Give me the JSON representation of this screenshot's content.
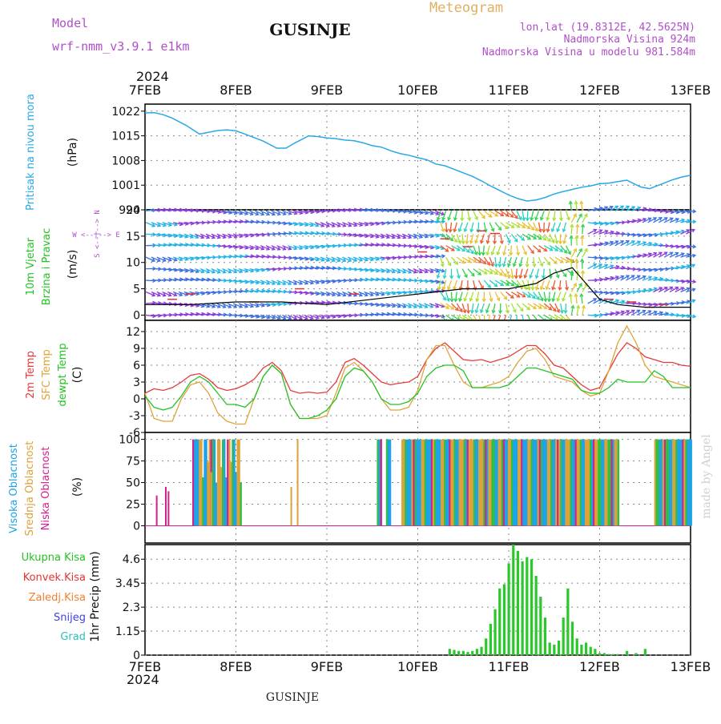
{
  "header": {
    "model_label": "Model",
    "model_name": "wrf-nmm_v3.9.1  e1km",
    "station": "GUSINJE",
    "meteogram_label": "Meteogram",
    "lonlat": "lon,lat (19.8312E, 42.5625N)",
    "elevation": "Nadmorska Visina 924m",
    "model_elevation": "Nadmorska Visina u modelu 981.584m",
    "footer_station": "GUSINJE",
    "credit": "made by Angel"
  },
  "time_axis": {
    "year": "2024",
    "ticks": [
      "7FEB",
      "8FEB",
      "9FEB",
      "10FEB",
      "11FEB",
      "12FEB",
      "13FEB"
    ]
  },
  "colors": {
    "pressure": "#29a8e6",
    "t2m": "#e6393a",
    "sfc": "#e0a338",
    "dew": "#22c322",
    "high_cloud": "#1ea3e6",
    "mid_cloud": "#dca23c",
    "low_cloud": "#d4208c",
    "precip_total": "#2ac82a",
    "precip_conv": "#e63232",
    "precip_frz": "#f08030",
    "precip_snow": "#4040e0",
    "precip_hail": "#30c0c0",
    "wind_speed_line": "#000000",
    "wind_gust_marks": "#e63232"
  },
  "chart_data": [
    {
      "type": "line",
      "panel": "pressure",
      "ylabel_main": "Pritisak na nivou mora",
      "ylabel_unit": "(hPa)",
      "ylim": [
        994,
        1024
      ],
      "yticks": [
        "994",
        "1001",
        "1008",
        "1015",
        "1022"
      ],
      "x_days": [
        0,
        0.1,
        0.2,
        0.3,
        0.45,
        0.6,
        0.7,
        0.8,
        0.9,
        1.0,
        1.1,
        1.2,
        1.3,
        1.45,
        1.55,
        1.65,
        1.8,
        1.9,
        2.0,
        2.1,
        2.2,
        2.3,
        2.4,
        2.5,
        2.6,
        2.7,
        2.8,
        2.9,
        3.0,
        3.1,
        3.2,
        3.3,
        3.4,
        3.5,
        3.6,
        3.7,
        3.8,
        3.9,
        4.0,
        4.1,
        4.2,
        4.3,
        4.4,
        4.5,
        4.6,
        4.7,
        4.8,
        4.9,
        5.0,
        5.1,
        5.2,
        5.3,
        5.45,
        5.55,
        5.65,
        5.8,
        5.9,
        6.0
      ],
      "values": [
        1021.5,
        1021.6,
        1021,
        1020,
        1018,
        1015.5,
        1016,
        1016.5,
        1016.7,
        1016.4,
        1015.5,
        1014.5,
        1013.5,
        1011.5,
        1011.5,
        1013,
        1015,
        1014.8,
        1014.4,
        1014.2,
        1013.8,
        1013.6,
        1013,
        1012.2,
        1011.8,
        1010.8,
        1010,
        1009.5,
        1008.8,
        1008.2,
        1007,
        1006.5,
        1005.5,
        1004.5,
        1003.5,
        1002.2,
        1000.8,
        999.5,
        998.2,
        997.2,
        996.5,
        996.8,
        997.5,
        998.5,
        999.2,
        999.8,
        1000.4,
        1000.8,
        1001.4,
        1001.6,
        1002,
        1002.4,
        1000.5,
        1000,
        1001,
        1002.5,
        1003.3,
        1003.8
      ]
    },
    {
      "type": "line",
      "panel": "wind",
      "ylabel_main_1": "10m Vjetar",
      "ylabel_main_2": "Brzina i Pravac",
      "ylabel_unit": "(m/s)",
      "dir_legend": [
        "W <--|--> E",
        "S <--|--> N"
      ],
      "ylim": [
        -1,
        20
      ],
      "yticks": [
        "0",
        "5",
        "10",
        "15",
        "20"
      ],
      "x_days": [
        0,
        0.5,
        1,
        1.5,
        2,
        2.5,
        3,
        3.5,
        3.8,
        4.0,
        4.3,
        4.5,
        4.7,
        4.85,
        5.0,
        5.2,
        5.5,
        6.0
      ],
      "speed": [
        2,
        2,
        2.5,
        2.5,
        2,
        3,
        4,
        5,
        5,
        5,
        6,
        8,
        9,
        6,
        3,
        2,
        1.5,
        1.5
      ]
    },
    {
      "type": "line",
      "panel": "temperature",
      "ylabel_main_1": "2m Temp",
      "ylabel_main_2": "SFC Temp",
      "ylabel_main_3": "dewpt Temp",
      "ylabel_unit": "(C)",
      "ylim": [
        -6,
        14
      ],
      "yticks": [
        "-6",
        "-3",
        "0",
        "3",
        "6",
        "9",
        "12"
      ],
      "x_days": [
        0,
        0.1,
        0.2,
        0.3,
        0.4,
        0.5,
        0.6,
        0.7,
        0.8,
        0.9,
        1.0,
        1.1,
        1.2,
        1.3,
        1.4,
        1.5,
        1.6,
        1.7,
        1.8,
        1.9,
        2.0,
        2.1,
        2.2,
        2.3,
        2.4,
        2.5,
        2.6,
        2.7,
        2.8,
        2.9,
        3.0,
        3.1,
        3.2,
        3.3,
        3.4,
        3.5,
        3.6,
        3.7,
        3.8,
        3.9,
        4.0,
        4.1,
        4.2,
        4.3,
        4.4,
        4.5,
        4.6,
        4.7,
        4.8,
        4.9,
        5.0,
        5.1,
        5.2,
        5.3,
        5.4,
        5.5,
        5.6,
        5.7,
        5.8,
        5.9,
        6.0
      ],
      "series": [
        {
          "name": "2m Temp",
          "values": [
            1,
            1.8,
            1.5,
            2,
            3,
            4.2,
            4.5,
            3.5,
            2,
            1.5,
            1.8,
            2.5,
            3.5,
            5.5,
            6.5,
            5,
            1.5,
            1,
            1.2,
            1,
            1.2,
            3,
            6.5,
            7.2,
            6,
            4.5,
            3,
            2.5,
            2.8,
            3,
            4,
            7,
            9,
            10,
            8.5,
            7,
            6.8,
            7,
            6.5,
            7,
            7.5,
            8.5,
            9.5,
            9.5,
            8,
            6,
            5.5,
            4,
            2.5,
            1.5,
            2,
            5,
            8,
            10,
            9,
            7.5,
            7,
            6.5,
            6.5,
            6,
            5.8
          ]
        },
        {
          "name": "SFC Temp",
          "values": [
            1,
            -3.5,
            -4,
            -4,
            0,
            2.5,
            3,
            1,
            -2.5,
            -4,
            -4.5,
            -4.5,
            0,
            4,
            6,
            4.5,
            -1,
            -3.5,
            -3.5,
            -3.5,
            -3,
            1,
            5.5,
            6.5,
            5,
            3,
            0,
            -2,
            -2,
            -1.5,
            1.5,
            7,
            9.5,
            9.5,
            6,
            3,
            2,
            2,
            2.5,
            3,
            4,
            6.5,
            8.5,
            9,
            7,
            4,
            3.5,
            3,
            1.5,
            0.5,
            1,
            5,
            10,
            13,
            10,
            6,
            4,
            3.5,
            3,
            2.5,
            2
          ]
        },
        {
          "name": "dewpt Temp",
          "values": [
            0.5,
            -1.5,
            -2,
            -1.5,
            0.5,
            3,
            4,
            3,
            1,
            -1,
            -1,
            -1.5,
            0,
            4,
            6,
            4.5,
            -1,
            -3.5,
            -3.5,
            -3,
            -2,
            0,
            4,
            5.5,
            5,
            3,
            0,
            -1,
            -1,
            -0.5,
            1,
            4,
            5.5,
            6,
            6,
            5,
            2,
            2,
            2,
            2,
            2.5,
            4,
            5.5,
            5.5,
            5,
            4.5,
            4,
            3.5,
            1.5,
            1,
            1,
            2,
            3.5,
            3,
            3,
            3,
            5,
            4,
            2,
            2,
            2
          ]
        }
      ]
    },
    {
      "type": "bar",
      "panel": "clouds",
      "ylabel_main_1": "Visoka Oblacnost",
      "ylabel_main_2": "Srednja Oblacnost",
      "ylabel_main_3": "Niska Oblacnost",
      "ylabel_unit": "(%)",
      "ylim": [
        0,
        100
      ],
      "yticks": [
        "0",
        "25",
        "50",
        "75",
        "100"
      ],
      "high_periods_days": [
        [
          0.52,
          0.72
        ],
        [
          0.72,
          1.05
        ],
        [
          2.55,
          2.6
        ],
        [
          2.65,
          2.7
        ],
        [
          2.82,
          5.2
        ],
        [
          5.6,
          6.0
        ]
      ],
      "low_bars_days": [
        0.12,
        0.22,
        0.25
      ],
      "low_bar_values": [
        35,
        45,
        40
      ]
    },
    {
      "type": "bar",
      "panel": "precip",
      "legend": [
        "Ukupna Kisa",
        "Konvek.Kisa",
        "Zaledj.Kisa",
        "Snijeg",
        "Grad"
      ],
      "ylabel_unit": "1hr Precip (mm)",
      "ylim": [
        0,
        5.3
      ],
      "yticks": [
        "0",
        "1.15",
        "2.3",
        "3.45",
        "4.6"
      ],
      "x_days": [
        3.35,
        3.4,
        3.45,
        3.5,
        3.55,
        3.6,
        3.65,
        3.7,
        3.75,
        3.8,
        3.85,
        3.9,
        3.95,
        4.0,
        4.05,
        4.1,
        4.15,
        4.2,
        4.25,
        4.3,
        4.35,
        4.4,
        4.45,
        4.5,
        4.55,
        4.6,
        4.65,
        4.7,
        4.75,
        4.8,
        4.85,
        4.9,
        4.95,
        5.0,
        5.05,
        5.1,
        5.15,
        5.2,
        5.3,
        5.4,
        5.5
      ],
      "values": [
        0.3,
        0.25,
        0.2,
        0.2,
        0.15,
        0.2,
        0.3,
        0.4,
        0.8,
        1.5,
        2.2,
        3.2,
        3.4,
        4.4,
        5.3,
        5.0,
        4.5,
        4.7,
        4.6,
        3.8,
        2.8,
        1.8,
        0.6,
        0.5,
        0.7,
        1.8,
        3.2,
        1.6,
        0.8,
        0.5,
        0.6,
        0.4,
        0.3,
        0.1,
        0.1,
        0.05,
        0.05,
        0.05,
        0.2,
        0.1,
        0.3
      ]
    }
  ]
}
